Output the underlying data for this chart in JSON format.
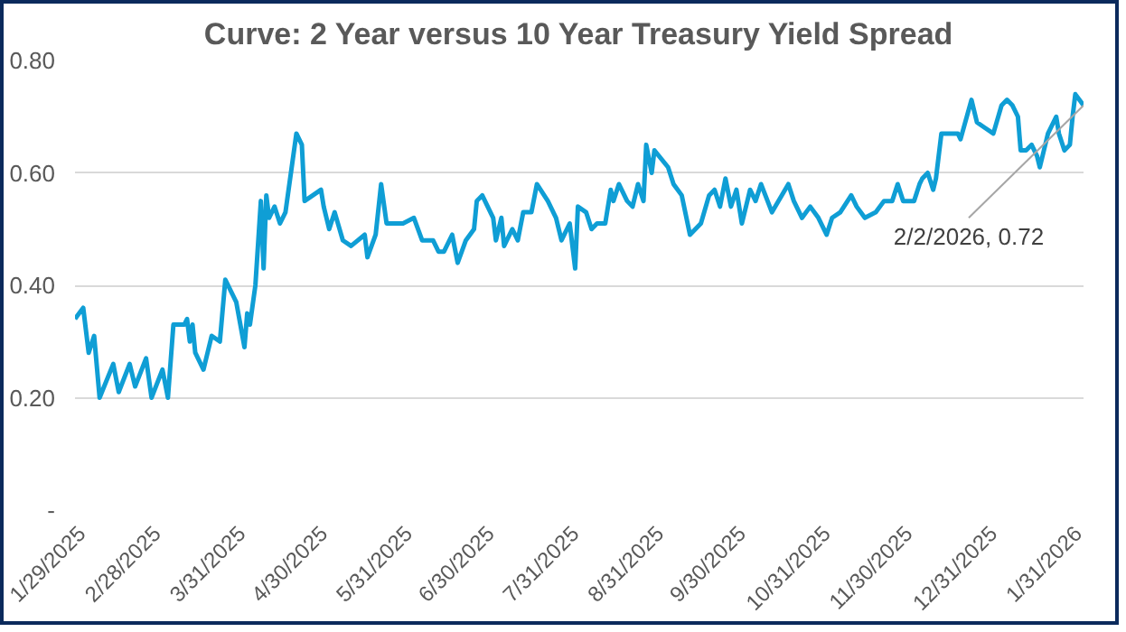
{
  "chart_data": {
    "type": "line",
    "title": "Curve: 2 Year versus 10 Year Treasury Yield Spread",
    "x": [
      "2025-01-29",
      "2025-02-01",
      "2025-02-03",
      "2025-02-05",
      "2025-02-07",
      "2025-02-12",
      "2025-02-14",
      "2025-02-18",
      "2025-02-20",
      "2025-02-24",
      "2025-02-26",
      "2025-03-02",
      "2025-03-04",
      "2025-03-06",
      "2025-03-10",
      "2025-03-11",
      "2025-03-12",
      "2025-03-13",
      "2025-03-14",
      "2025-03-17",
      "2025-03-20",
      "2025-03-23",
      "2025-03-25",
      "2025-03-29",
      "2025-04-01",
      "2025-04-02",
      "2025-04-03",
      "2025-04-05",
      "2025-04-07",
      "2025-04-08",
      "2025-04-09",
      "2025-04-10",
      "2025-04-12",
      "2025-04-14",
      "2025-04-16",
      "2025-04-20",
      "2025-04-22",
      "2025-04-23",
      "2025-04-26",
      "2025-04-29",
      "2025-04-30",
      "2025-05-02",
      "2025-05-04",
      "2025-05-07",
      "2025-05-10",
      "2025-05-15",
      "2025-05-16",
      "2025-05-19",
      "2025-05-21",
      "2025-05-23",
      "2025-05-29",
      "2025-06-02",
      "2025-06-05",
      "2025-06-09",
      "2025-06-11",
      "2025-06-13",
      "2025-06-16",
      "2025-06-18",
      "2025-06-21",
      "2025-06-24",
      "2025-06-25",
      "2025-06-27",
      "2025-07-01",
      "2025-07-02",
      "2025-07-04",
      "2025-07-05",
      "2025-07-08",
      "2025-07-10",
      "2025-07-12",
      "2025-07-15",
      "2025-07-17",
      "2025-07-21",
      "2025-07-24",
      "2025-07-26",
      "2025-07-29",
      "2025-07-30",
      "2025-07-31",
      "2025-08-01",
      "2025-08-04",
      "2025-08-06",
      "2025-08-08",
      "2025-08-11",
      "2025-08-13",
      "2025-08-14",
      "2025-08-16",
      "2025-08-19",
      "2025-08-21",
      "2025-08-23",
      "2025-08-25",
      "2025-08-26",
      "2025-08-28",
      "2025-08-29",
      "2025-09-03",
      "2025-09-05",
      "2025-09-08",
      "2025-09-11",
      "2025-09-15",
      "2025-09-18",
      "2025-09-20",
      "2025-09-22",
      "2025-09-24",
      "2025-09-26",
      "2025-09-28",
      "2025-09-30",
      "2025-10-03",
      "2025-10-05",
      "2025-10-07",
      "2025-10-11",
      "2025-10-17",
      "2025-10-19",
      "2025-10-22",
      "2025-10-25",
      "2025-10-28",
      "2025-10-31",
      "2025-11-02",
      "2025-11-05",
      "2025-11-09",
      "2025-11-11",
      "2025-11-14",
      "2025-11-18",
      "2025-11-21",
      "2025-11-24",
      "2025-11-26",
      "2025-11-28",
      "2025-12-02",
      "2025-12-04",
      "2025-12-05",
      "2025-12-07",
      "2025-12-09",
      "2025-12-10",
      "2025-12-12",
      "2025-12-18",
      "2025-12-19",
      "2025-12-23",
      "2025-12-25",
      "2025-12-28",
      "2025-12-31",
      "2026-01-03",
      "2026-01-05",
      "2026-01-07",
      "2026-01-09",
      "2026-01-10",
      "2026-01-12",
      "2026-01-14",
      "2026-01-16",
      "2026-01-17",
      "2026-01-20",
      "2026-01-23",
      "2026-01-24",
      "2026-01-26",
      "2026-01-28",
      "2026-01-29",
      "2026-01-30",
      "2026-02-02"
    ],
    "series": [
      {
        "color": "#0f9ed5",
        "values": [
          0.34,
          0.36,
          0.28,
          0.31,
          0.2,
          0.26,
          0.21,
          0.26,
          0.22,
          0.27,
          0.2,
          0.25,
          0.2,
          0.33,
          0.33,
          0.34,
          0.3,
          0.33,
          0.28,
          0.25,
          0.31,
          0.3,
          0.41,
          0.37,
          0.29,
          0.35,
          0.33,
          0.4,
          0.55,
          0.43,
          0.56,
          0.52,
          0.54,
          0.51,
          0.53,
          0.67,
          0.65,
          0.55,
          0.56,
          0.57,
          0.54,
          0.5,
          0.53,
          0.48,
          0.47,
          0.49,
          0.45,
          0.49,
          0.58,
          0.51,
          0.51,
          0.52,
          0.48,
          0.48,
          0.46,
          0.46,
          0.49,
          0.44,
          0.48,
          0.5,
          0.55,
          0.56,
          0.52,
          0.48,
          0.52,
          0.47,
          0.5,
          0.48,
          0.53,
          0.53,
          0.58,
          0.55,
          0.52,
          0.48,
          0.51,
          0.47,
          0.43,
          0.54,
          0.53,
          0.5,
          0.51,
          0.51,
          0.57,
          0.55,
          0.58,
          0.55,
          0.54,
          0.58,
          0.55,
          0.65,
          0.6,
          0.64,
          0.61,
          0.58,
          0.56,
          0.49,
          0.51,
          0.56,
          0.57,
          0.54,
          0.59,
          0.54,
          0.57,
          0.51,
          0.57,
          0.55,
          0.58,
          0.53,
          0.58,
          0.55,
          0.52,
          0.54,
          0.52,
          0.49,
          0.52,
          0.53,
          0.56,
          0.54,
          0.52,
          0.53,
          0.55,
          0.55,
          0.58,
          0.55,
          0.55,
          0.58,
          0.59,
          0.6,
          0.57,
          0.59,
          0.67,
          0.67,
          0.66,
          0.73,
          0.69,
          0.68,
          0.67,
          0.72,
          0.73,
          0.72,
          0.7,
          0.64,
          0.64,
          0.65,
          0.63,
          0.61,
          0.67,
          0.7,
          0.67,
          0.64,
          0.65,
          0.7,
          0.74,
          0.72
        ]
      }
    ],
    "xlim": [
      "2025-01-29",
      "2026-02-02"
    ],
    "xticks": [
      {
        "value": "2025-01-29",
        "label": "1/29/2025"
      },
      {
        "value": "2025-02-28",
        "label": "2/28/2025"
      },
      {
        "value": "2025-03-31",
        "label": "3/31/2025"
      },
      {
        "value": "2025-04-30",
        "label": "4/30/2025"
      },
      {
        "value": "2025-05-31",
        "label": "5/31/2025"
      },
      {
        "value": "2025-06-30",
        "label": "6/30/2025"
      },
      {
        "value": "2025-07-31",
        "label": "7/31/2025"
      },
      {
        "value": "2025-08-31",
        "label": "8/31/2025"
      },
      {
        "value": "2025-09-30",
        "label": "9/30/2025"
      },
      {
        "value": "2025-10-31",
        "label": "10/31/2025"
      },
      {
        "value": "2025-11-30",
        "label": "11/30/2025"
      },
      {
        "value": "2025-12-31",
        "label": "12/31/2025"
      },
      {
        "value": "2026-01-31",
        "label": "1/31/2026"
      }
    ],
    "ylim": [
      0,
      0.8
    ],
    "yticks": [
      {
        "value": 0,
        "label": "-"
      },
      {
        "value": 0.2,
        "label": "0.20"
      },
      {
        "value": 0.4,
        "label": "0.40"
      },
      {
        "value": 0.6,
        "label": "0.60"
      },
      {
        "value": 0.8,
        "label": "0.80"
      }
    ],
    "grid": "y",
    "annotations": [
      {
        "text": "2/2/2026, 0.72",
        "x": "2026-02-02",
        "y": 0.72
      }
    ]
  }
}
